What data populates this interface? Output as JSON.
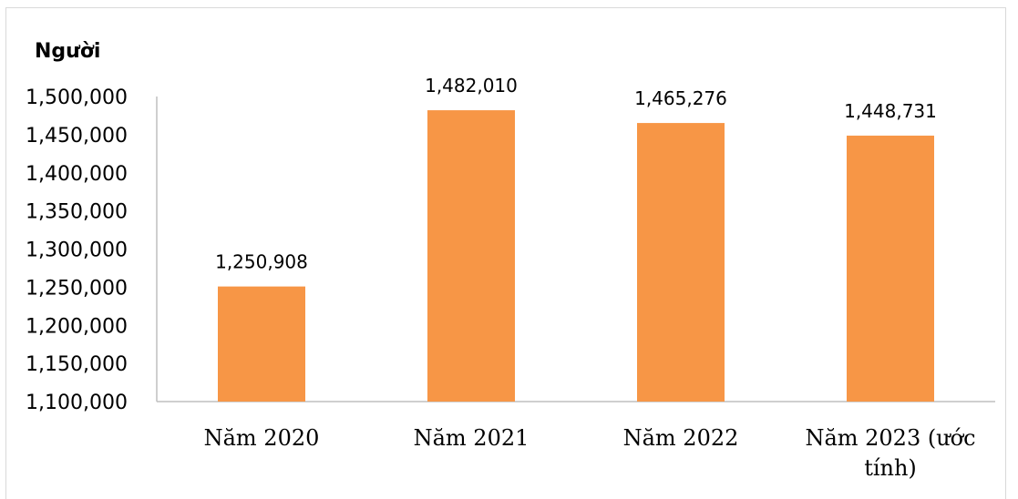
{
  "chart_data": {
    "type": "bar",
    "y_unit_label": "Người",
    "categories": [
      [
        "Năm 2020"
      ],
      [
        "Năm 2021"
      ],
      [
        "Năm 2022"
      ],
      [
        "Năm 2023 (ước",
        "tính)"
      ]
    ],
    "values": [
      1250908,
      1482010,
      1465276,
      1448731
    ],
    "data_labels": [
      "1,250,908",
      "1,482,010",
      "1,465,276",
      "1,448,731"
    ],
    "ylim": [
      1100000,
      1500000
    ],
    "yticks": [
      1100000,
      1150000,
      1200000,
      1250000,
      1300000,
      1350000,
      1400000,
      1450000,
      1500000
    ],
    "ytick_labels": [
      "1,100,000",
      "1,150,000",
      "1,200,000",
      "1,250,000",
      "1,300,000",
      "1,350,000",
      "1,400,000",
      "1,450,000",
      "1,500,000"
    ],
    "grid": false,
    "legend": "none",
    "colors": {
      "bar": "#f79646",
      "axis": "#bfbfbf",
      "frame": "#d9d9d9"
    }
  }
}
